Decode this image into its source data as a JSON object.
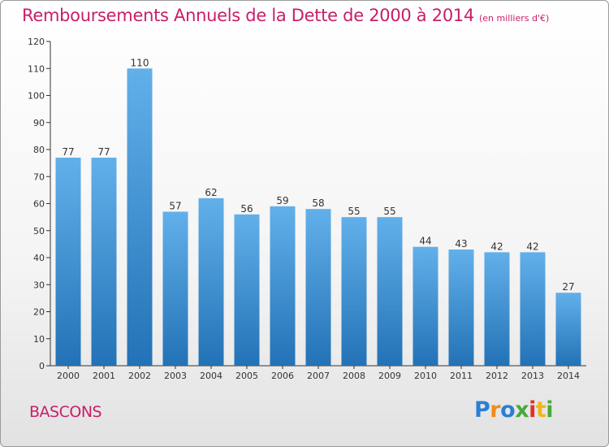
{
  "chart_data": {
    "type": "bar",
    "title": "Remboursements Annuels de la Dette de 2000 à 2014",
    "subtitle": "(en milliers d'€)",
    "categories": [
      "2000",
      "2001",
      "2002",
      "2003",
      "2004",
      "2005",
      "2006",
      "2007",
      "2008",
      "2009",
      "2010",
      "2011",
      "2012",
      "2013",
      "2014"
    ],
    "values": [
      77,
      77,
      110,
      57,
      62,
      56,
      59,
      58,
      55,
      55,
      44,
      43,
      42,
      42,
      27
    ],
    "yticks": [
      0,
      10,
      20,
      30,
      40,
      50,
      60,
      70,
      80,
      90,
      100,
      110,
      120
    ],
    "ylim": [
      0,
      120
    ],
    "xlabel": "",
    "ylabel": "",
    "grid": false,
    "legend": "none"
  },
  "location": "BASCONS",
  "logo": {
    "letters": [
      "P",
      "r",
      "o",
      "x",
      "i",
      "t",
      "i"
    ],
    "colors": [
      "#2a7fd4",
      "#f08c1a",
      "#2a7fd4",
      "#49a93c",
      "#e2302a",
      "#f2b51a",
      "#49a93c"
    ]
  },
  "colors": {
    "accent": "#c81e6a",
    "bar_top": "#62b0ea",
    "bar_bottom": "#2372b6",
    "axis": "#333333",
    "label": "#333333"
  }
}
